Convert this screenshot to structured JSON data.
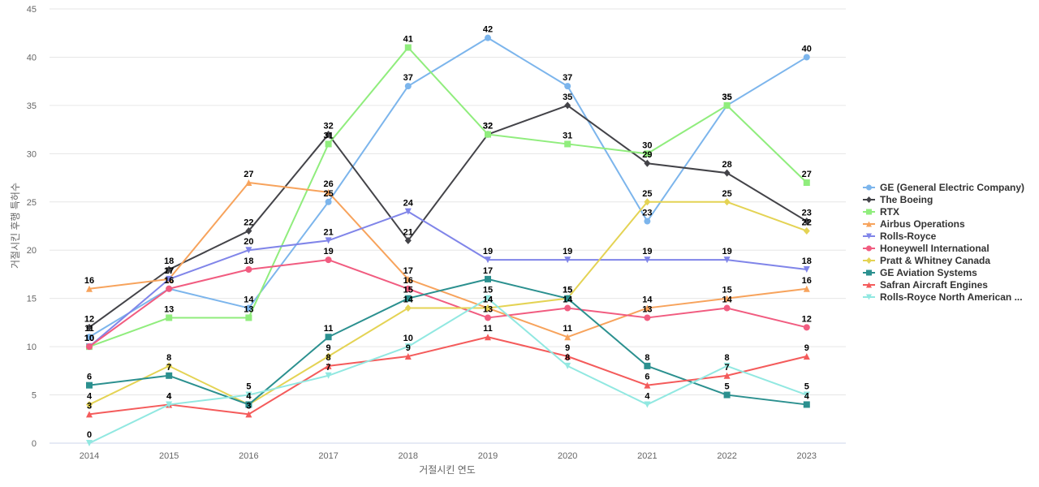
{
  "chart_data": {
    "type": "line",
    "title": "",
    "xlabel": "거절시킨 연도",
    "ylabel": "거절시킨 후행 특허수",
    "ylim": [
      0,
      45
    ],
    "yticks": [
      0,
      5,
      10,
      15,
      20,
      25,
      30,
      35,
      40,
      45
    ],
    "grid": true,
    "legend_position": "right",
    "x": [
      "2014",
      "2015",
      "2016",
      "2017",
      "2018",
      "2019",
      "2020",
      "2021",
      "2022",
      "2023"
    ],
    "series": [
      {
        "name": "GE (General Electric Company)",
        "color": "#7cb5ec",
        "marker": "circle",
        "values": [
          11,
          16,
          14,
          25,
          37,
          42,
          37,
          23,
          35,
          40
        ]
      },
      {
        "name": "The Boeing",
        "color": "#434348",
        "marker": "diamond",
        "values": [
          12,
          18,
          22,
          32,
          21,
          32,
          35,
          29,
          28,
          23
        ]
      },
      {
        "name": "RTX",
        "color": "#90ed7d",
        "marker": "square",
        "values": [
          10,
          13,
          13,
          31,
          41,
          32,
          31,
          30,
          35,
          27
        ]
      },
      {
        "name": "Airbus Operations",
        "color": "#f7a35c",
        "marker": "triangle",
        "values": [
          16,
          17,
          27,
          26,
          17,
          14,
          11,
          14,
          15,
          16
        ]
      },
      {
        "name": "Rolls-Royce",
        "color": "#8085e9",
        "marker": "triangle-down",
        "values": [
          10,
          17,
          20,
          21,
          24,
          19,
          19,
          19,
          19,
          18
        ]
      },
      {
        "name": "Honeywell International",
        "color": "#f15c80",
        "marker": "circle",
        "values": [
          10,
          16,
          18,
          19,
          16,
          13,
          14,
          13,
          14,
          12
        ]
      },
      {
        "name": "Pratt & Whitney Canada",
        "color": "#e4d354",
        "marker": "diamond",
        "values": [
          4,
          8,
          4,
          9,
          14,
          14,
          15,
          25,
          25,
          22
        ]
      },
      {
        "name": "GE Aviation Systems",
        "color": "#2b908f",
        "marker": "square",
        "values": [
          6,
          7,
          4,
          11,
          15,
          17,
          15,
          8,
          5,
          4
        ]
      },
      {
        "name": "Safran Aircraft Engines",
        "color": "#f45b5b",
        "marker": "triangle",
        "values": [
          3,
          4,
          3,
          8,
          9,
          11,
          9,
          6,
          7,
          9
        ]
      },
      {
        "name": "Rolls-Royce North American ...",
        "color": "#91e8e1",
        "marker": "triangle-down",
        "values": [
          0,
          4,
          5,
          7,
          10,
          15,
          8,
          4,
          8,
          5
        ]
      }
    ]
  }
}
